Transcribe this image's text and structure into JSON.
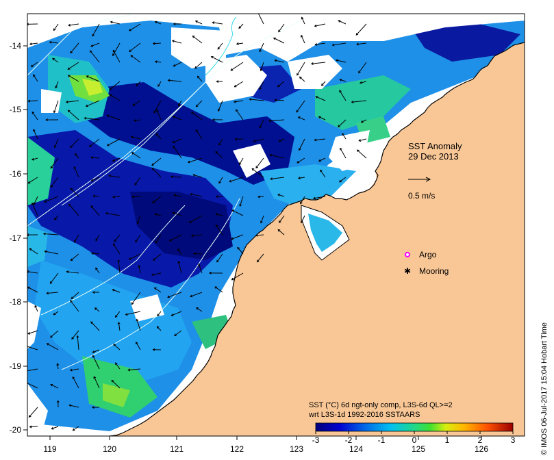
{
  "title": {
    "line1": "SST Anomaly",
    "line2": "29 Dec 2013"
  },
  "vector_scale": {
    "label": "0.5 m/s"
  },
  "legend": {
    "argo": "Argo",
    "mooring": "Mooring"
  },
  "colorbar": {
    "caption_line1": "SST (°C) 6d ngt-only comp, L3S-6d QL>=2",
    "caption_line2": "wrt L3S-1d 1992-2016 SSTAARS",
    "ticks": [
      "-3",
      "-2",
      "-1",
      "0",
      "1",
      "2",
      "3"
    ],
    "min": -3,
    "max": 3
  },
  "axes": {
    "x_ticks": [
      "119",
      "120",
      "121",
      "122",
      "123",
      "124",
      "125",
      "126"
    ],
    "y_ticks": [
      "-14",
      "-15",
      "-16",
      "-17",
      "-18",
      "-19",
      "-20"
    ],
    "lon_range": [
      118.6,
      126.7
    ],
    "lat_range": [
      -20.15,
      -13.55
    ]
  },
  "credit": "© IMOS 06-Jul-2017 15:04 Hobart Time",
  "colors": {
    "land": "#f9c796",
    "ocean_missing": "#ffffff",
    "argo": "#ff00ff"
  }
}
